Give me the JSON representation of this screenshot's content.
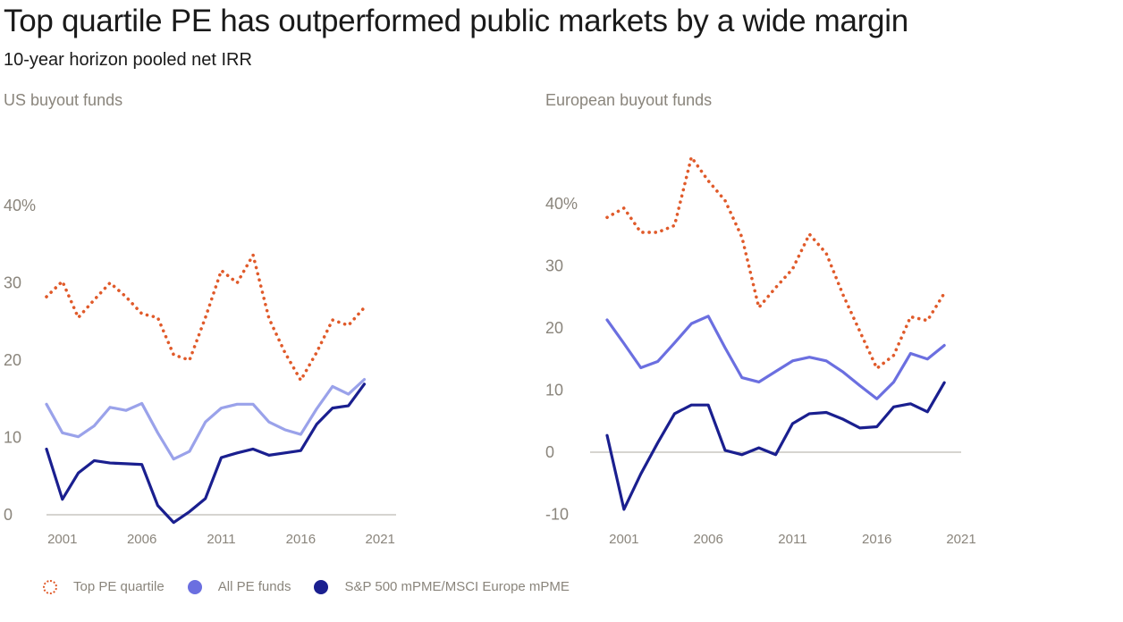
{
  "title": "Top quartile PE has outperformed public markets by a wide margin",
  "subtitle": "10-year horizon pooled net IRR",
  "colors": {
    "top_quartile": "#e05a2a",
    "all_pe_us": "#9aa2ea",
    "all_pe_eu": "#6b6fe0",
    "public": "#1a1f8f",
    "axis_text": "#8a857c",
    "baseline": "#c8c6c0"
  },
  "legend": {
    "top_quartile": "Top PE quartile",
    "all_pe": "All PE funds",
    "public": "S&P 500 mPME/MSCI Europe mPME"
  },
  "chart_data": [
    {
      "type": "line",
      "title": "US buyout funds",
      "x_ticks": [
        "2001",
        "2006",
        "2011",
        "2016",
        "2021"
      ],
      "y_ticks": [
        "0",
        "10",
        "20",
        "30",
        "40%"
      ],
      "ylim": [
        0,
        40
      ],
      "x": [
        2000,
        2001,
        2002,
        2003,
        2004,
        2005,
        2006,
        2007,
        2008,
        2009,
        2010,
        2011,
        2012,
        2013,
        2014,
        2015,
        2016,
        2017,
        2018,
        2019,
        2020,
        2021,
        2022
      ],
      "series": [
        {
          "name": "Top PE quartile",
          "style": "dotted",
          "values": [
            28.2,
            30.2,
            25.5,
            27.8,
            30.0,
            28.2,
            26.0,
            25.5,
            20.7,
            20.0,
            25.5,
            31.6,
            30.0,
            33.6,
            25.4,
            21.0,
            17.4,
            21.0,
            25.2,
            24.5,
            26.8,
            null,
            null
          ]
        },
        {
          "name": "All PE funds",
          "style": "solid",
          "values": [
            14.3,
            10.6,
            10.1,
            11.5,
            13.9,
            13.5,
            14.4,
            10.6,
            7.2,
            8.2,
            12.0,
            13.8,
            14.3,
            14.3,
            12.0,
            11.0,
            10.4,
            13.7,
            16.6,
            15.6,
            17.5,
            null,
            null
          ]
        },
        {
          "name": "S&P 500 mPME/MSCI Europe mPME",
          "style": "solid",
          "values": [
            8.5,
            2.0,
            5.4,
            7.0,
            6.7,
            6.6,
            6.5,
            1.2,
            -1.0,
            0.4,
            2.1,
            7.4,
            8.0,
            8.5,
            7.7,
            8.0,
            8.3,
            11.7,
            13.8,
            14.1,
            16.9,
            null,
            null
          ]
        }
      ]
    },
    {
      "type": "line",
      "title": "European buyout funds",
      "x_ticks": [
        "2001",
        "2006",
        "2011",
        "2016",
        "2021"
      ],
      "y_ticks": [
        "-10",
        "0",
        "10",
        "20",
        "30",
        "40%"
      ],
      "ylim": [
        -10,
        40
      ],
      "x": [
        2000,
        2001,
        2002,
        2003,
        2004,
        2005,
        2006,
        2007,
        2008,
        2009,
        2010,
        2011,
        2012,
        2013,
        2014,
        2015,
        2016,
        2017,
        2018,
        2019,
        2020,
        2021
      ],
      "series": [
        {
          "name": "Top PE quartile",
          "style": "dotted",
          "values": [
            37.8,
            39.3,
            35.4,
            35.4,
            36.5,
            47.5,
            43.7,
            40.5,
            34.6,
            23.3,
            26.5,
            29.5,
            35.1,
            32.0,
            25.3,
            19.4,
            13.5,
            15.6,
            21.8,
            21.2,
            25.6,
            null
          ]
        },
        {
          "name": "All PE funds",
          "style": "solid",
          "values": [
            21.3,
            17.5,
            13.6,
            14.6,
            17.6,
            20.7,
            21.9,
            16.8,
            12.0,
            11.3,
            13.0,
            14.7,
            15.3,
            14.7,
            12.9,
            10.7,
            8.6,
            11.3,
            15.9,
            15.0,
            17.2,
            null
          ]
        },
        {
          "name": "S&P 500 mPME/MSCI Europe mPME",
          "style": "solid",
          "values": [
            2.7,
            -9.2,
            -3.5,
            1.5,
            6.2,
            7.6,
            7.6,
            0.3,
            -0.4,
            0.7,
            -0.4,
            4.6,
            6.2,
            6.4,
            5.3,
            3.9,
            4.1,
            7.3,
            7.8,
            6.5,
            11.2,
            null
          ]
        }
      ]
    }
  ]
}
